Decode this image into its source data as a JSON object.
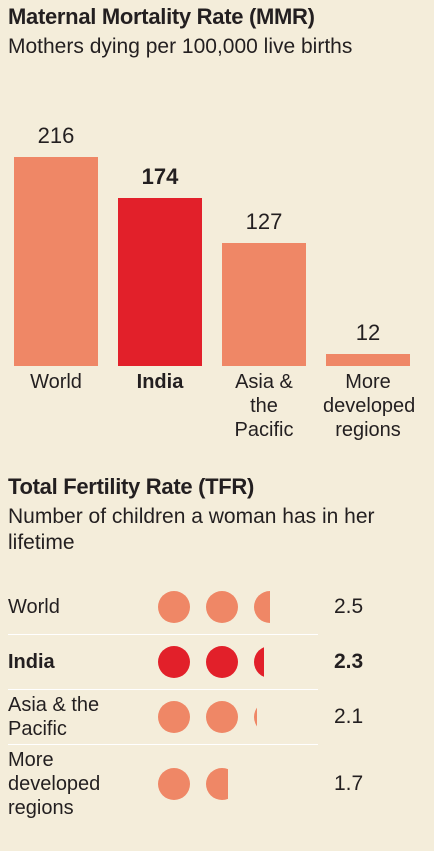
{
  "chart_data": [
    {
      "type": "bar",
      "title": "Maternal Mortality Rate (MMR)",
      "subtitle": "Mothers dying per 100,000 live births",
      "categories": [
        "World",
        "India",
        "Asia & the Pacific",
        "More developed regions"
      ],
      "values": [
        216,
        174,
        127,
        12
      ],
      "colors": [
        "#ef8766",
        "#e2202a",
        "#ef8766",
        "#ef8766"
      ],
      "bold": [
        false,
        true,
        false,
        false
      ]
    },
    {
      "type": "dot",
      "title": "Total Fertility Rate (TFR)",
      "subtitle": "Number of children a woman has in her lifetime",
      "categories": [
        "World",
        "India",
        "Asia & the Pacific",
        "More developed regions"
      ],
      "values": [
        2.5,
        2.3,
        2.1,
        1.7
      ],
      "colors": [
        "#ef8766",
        "#e2202a",
        "#ef8766",
        "#ef8766"
      ],
      "bold": [
        false,
        true,
        false,
        false
      ]
    }
  ]
}
